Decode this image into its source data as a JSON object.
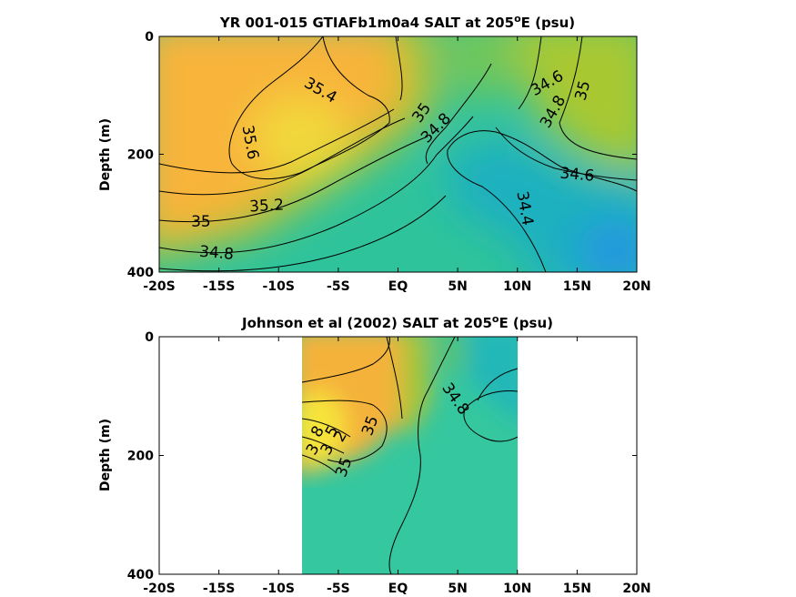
{
  "chart_data": [
    {
      "type": "contour",
      "title": "YR 001-015 GTIAFb1m0a4 SALT at 205",
      "title_sup": "o",
      "title_suffix": "E (psu)",
      "ylabel": "Depth (m)",
      "xlim": [
        -20,
        20
      ],
      "ylim": [
        0,
        400
      ],
      "y_reversed": true,
      "x_ticks": [
        -20,
        -15,
        -10,
        -5,
        0,
        5,
        10,
        15,
        20
      ],
      "x_tick_labels": [
        "-20S",
        "-15S",
        "-10S",
        "-5S",
        "EQ",
        "5N",
        "10N",
        "15N",
        "20N"
      ],
      "y_ticks": [
        0,
        200,
        400
      ],
      "y_tick_labels": [
        "0",
        "200",
        "400"
      ],
      "contour_labels": [
        {
          "text": "35.4",
          "x": -6.5,
          "y": 92,
          "angle": 30
        },
        {
          "text": "35.6",
          "x": -12.4,
          "y": 180,
          "angle": 80
        },
        {
          "text": "35.2",
          "x": -11,
          "y": 288,
          "angle": -3
        },
        {
          "text": "35",
          "x": -16.5,
          "y": 315,
          "angle": 0
        },
        {
          "text": "34.8",
          "x": -15.2,
          "y": 368,
          "angle": 5
        },
        {
          "text": "35",
          "x": 2,
          "y": 130,
          "angle": -55
        },
        {
          "text": "34.8",
          "x": 3.2,
          "y": 156,
          "angle": -45
        },
        {
          "text": "34.6",
          "x": 12.5,
          "y": 80,
          "angle": -30
        },
        {
          "text": "34.8",
          "x": 13,
          "y": 128,
          "angle": -60
        },
        {
          "text": "35",
          "x": 15.5,
          "y": 92,
          "angle": -75
        },
        {
          "text": "34.6",
          "x": 15,
          "y": 235,
          "angle": 5
        },
        {
          "text": "34.4",
          "x": 10.6,
          "y": 292,
          "angle": 80
        }
      ]
    },
    {
      "type": "contour",
      "title": "Johnson et al (2002) SALT at 205",
      "title_sup": "o",
      "title_suffix": "E (psu)",
      "ylabel": "Depth (m)",
      "xlim": [
        -20,
        20
      ],
      "ylim": [
        0,
        400
      ],
      "y_reversed": true,
      "data_x_range": [
        -8,
        10
      ],
      "x_ticks": [
        -20,
        -15,
        -10,
        -5,
        0,
        5,
        10,
        15,
        20
      ],
      "x_tick_labels": [
        "-20S",
        "-15S",
        "-10S",
        "-5S",
        "EQ",
        "5N",
        "10N",
        "15N",
        "20N"
      ],
      "y_ticks": [
        0,
        200,
        400
      ],
      "y_tick_labels": [
        "0",
        "200",
        "400"
      ],
      "contour_labels": [
        {
          "text": "34.8",
          "x": 4.8,
          "y": 105,
          "angle": 55
        },
        {
          "text": "35",
          "x": -4.5,
          "y": 220,
          "angle": -70
        },
        {
          "text": "8",
          "x": -6.7,
          "y": 160,
          "angle": -60
        },
        {
          "text": "5",
          "x": -5.5,
          "y": 160,
          "angle": -60
        },
        {
          "text": "2",
          "x": -4.8,
          "y": 168,
          "angle": -60
        },
        {
          "text": "3",
          "x": -7.1,
          "y": 190,
          "angle": -60
        },
        {
          "text": "3",
          "x": -5.9,
          "y": 190,
          "angle": -60
        },
        {
          "text": "35",
          "x": -2.3,
          "y": 150,
          "angle": -70
        }
      ]
    }
  ]
}
